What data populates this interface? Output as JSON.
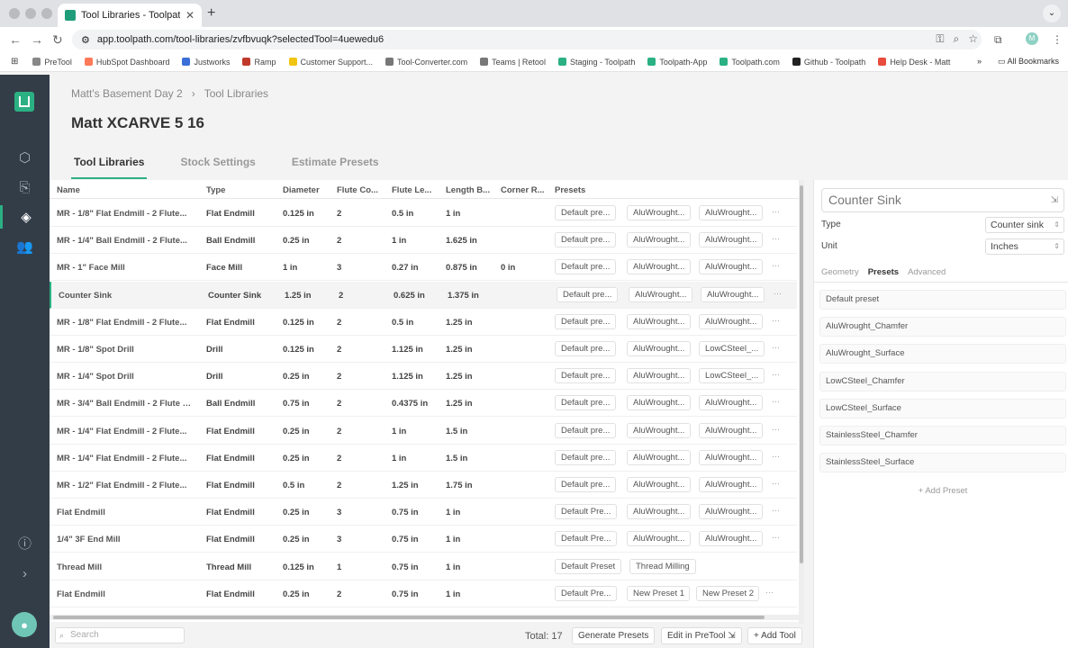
{
  "browser": {
    "tab_title": "Tool Libraries - Toolpath",
    "url": "app.toolpath.com/tool-libraries/zvfbvuqk?selectedTool=4uewedu6",
    "profile_initial": "M",
    "bookmarks": [
      {
        "label": "PreTool",
        "color": "#888888"
      },
      {
        "label": "HubSpot Dashboard",
        "color": "#ff7a59"
      },
      {
        "label": "Justworks",
        "color": "#3a6fd8"
      },
      {
        "label": "Ramp",
        "color": "#c0392b"
      },
      {
        "label": "Customer Support...",
        "color": "#f1c40f"
      },
      {
        "label": "Tool-Converter.com",
        "color": "#777777"
      },
      {
        "label": "Teams | Retool",
        "color": "#777777"
      },
      {
        "label": "Staging - Toolpath",
        "color": "#2bb083"
      },
      {
        "label": "Toolpath-App",
        "color": "#2bb083"
      },
      {
        "label": "Toolpath.com",
        "color": "#2bb083"
      },
      {
        "label": "Github - Toolpath",
        "color": "#222222"
      },
      {
        "label": "Help Desk - Matt",
        "color": "#e74c3c"
      }
    ],
    "more_bookmarks": "»",
    "all_bookmarks": "All Bookmarks"
  },
  "breadcrumb": {
    "parent": "Matt's Basement Day 2",
    "sep": "›",
    "current": "Tool Libraries"
  },
  "page_title": "Matt XCARVE 5 16",
  "tabs": [
    "Tool Libraries",
    "Stock Settings",
    "Estimate Presets"
  ],
  "columns": [
    "Name",
    "Type",
    "Diameter",
    "Flute Co...",
    "Flute Le...",
    "Length B...",
    "Corner R...",
    "Presets"
  ],
  "rows": [
    {
      "name": "MR - 1/8\" Flat Endmill - 2 Flute...",
      "type": "Flat Endmill",
      "diameter": "0.125 in",
      "flutes": "2",
      "flute_len": "0.5 in",
      "length": "1 in",
      "corner": "",
      "presets": [
        "Default pre...",
        "AluWrought...",
        "AluWrought..."
      ]
    },
    {
      "name": "MR - 1/4\" Ball Endmill - 2 Flute...",
      "type": "Ball Endmill",
      "diameter": "0.25 in",
      "flutes": "2",
      "flute_len": "1 in",
      "length": "1.625 in",
      "corner": "",
      "presets": [
        "Default pre...",
        "AluWrought...",
        "AluWrought..."
      ]
    },
    {
      "name": "MR - 1\" Face Mill",
      "type": "Face Mill",
      "diameter": "1 in",
      "flutes": "3",
      "flute_len": "0.27 in",
      "length": "0.875 in",
      "corner": "0 in",
      "presets": [
        "Default pre...",
        "AluWrought...",
        "AluWrought..."
      ]
    },
    {
      "name": "Counter Sink",
      "type": "Counter Sink",
      "diameter": "1.25 in",
      "flutes": "2",
      "flute_len": "0.625 in",
      "length": "1.375 in",
      "corner": "",
      "presets": [
        "Default pre...",
        "AluWrought...",
        "AluWrought..."
      ]
    },
    {
      "name": "MR - 1/8\" Flat Endmill - 2 Flute...",
      "type": "Flat Endmill",
      "diameter": "0.125 in",
      "flutes": "2",
      "flute_len": "0.5 in",
      "length": "1.25 in",
      "corner": "",
      "presets": [
        "Default pre...",
        "AluWrought...",
        "AluWrought..."
      ]
    },
    {
      "name": "MR - 1/8\" Spot Drill",
      "type": "Drill",
      "diameter": "0.125 in",
      "flutes": "2",
      "flute_len": "1.125 in",
      "length": "1.25 in",
      "corner": "",
      "presets": [
        "Default pre...",
        "AluWrought...",
        "LowCSteel_..."
      ]
    },
    {
      "name": "MR - 1/4\" Spot Drill",
      "type": "Drill",
      "diameter": "0.25 in",
      "flutes": "2",
      "flute_len": "1.125 in",
      "length": "1.25 in",
      "corner": "",
      "presets": [
        "Default pre...",
        "AluWrought...",
        "LowCSteel_..."
      ]
    },
    {
      "name": "MR - 3/4\" Ball Endmill - 2 Flute -...",
      "type": "Ball Endmill",
      "diameter": "0.75 in",
      "flutes": "2",
      "flute_len": "0.4375 in",
      "length": "1.25 in",
      "corner": "",
      "presets": [
        "Default pre...",
        "AluWrought...",
        "AluWrought..."
      ]
    },
    {
      "name": "MR - 1/4\" Flat Endmill - 2 Flute...",
      "type": "Flat Endmill",
      "diameter": "0.25 in",
      "flutes": "2",
      "flute_len": "1 in",
      "length": "1.5 in",
      "corner": "",
      "presets": [
        "Default pre...",
        "AluWrought...",
        "AluWrought..."
      ]
    },
    {
      "name": "MR - 1/4\" Flat Endmill - 2 Flute...",
      "type": "Flat Endmill",
      "diameter": "0.25 in",
      "flutes": "2",
      "flute_len": "1 in",
      "length": "1.5 in",
      "corner": "",
      "presets": [
        "Default pre...",
        "AluWrought...",
        "AluWrought..."
      ]
    },
    {
      "name": "MR - 1/2\" Flat Endmill - 2 Flute...",
      "type": "Flat Endmill",
      "diameter": "0.5 in",
      "flutes": "2",
      "flute_len": "1.25 in",
      "length": "1.75 in",
      "corner": "",
      "presets": [
        "Default pre...",
        "AluWrought...",
        "AluWrought..."
      ]
    },
    {
      "name": "Flat Endmill",
      "type": "Flat Endmill",
      "diameter": "0.25 in",
      "flutes": "3",
      "flute_len": "0.75 in",
      "length": "1 in",
      "corner": "",
      "presets": [
        "Default Pre...",
        "AluWrought...",
        "AluWrought..."
      ]
    },
    {
      "name": "1/4\" 3F End Mill",
      "type": "Flat Endmill",
      "diameter": "0.25 in",
      "flutes": "3",
      "flute_len": "0.75 in",
      "length": "1 in",
      "corner": "",
      "presets": [
        "Default Pre...",
        "AluWrought...",
        "AluWrought..."
      ]
    },
    {
      "name": "Thread Mill",
      "type": "Thread Mill",
      "diameter": "0.125 in",
      "flutes": "1",
      "flute_len": "0.75 in",
      "length": "1 in",
      "corner": "",
      "presets": [
        "Default Preset",
        "Thread Milling"
      ]
    },
    {
      "name": "Flat Endmill",
      "type": "Flat Endmill",
      "diameter": "0.25 in",
      "flutes": "2",
      "flute_len": "0.75 in",
      "length": "1 in",
      "corner": "",
      "presets": [
        "Default Pre...",
        "New Preset 1",
        "New Preset 2"
      ]
    }
  ],
  "selected_row": 3,
  "footer": {
    "search_placeholder": "Search",
    "total": "Total: 17",
    "generate_presets": "Generate Presets",
    "edit_in_pretool": "Edit in PreTool",
    "add_tool": "+ Add Tool"
  },
  "panel": {
    "tool_name": "Counter Sink",
    "type_label": "Type",
    "type_value": "Counter sink",
    "unit_label": "Unit",
    "unit_value": "Inches",
    "tabs": [
      "Geometry",
      "Presets",
      "Advanced"
    ],
    "active_tab": "Presets",
    "presets": [
      "Default preset",
      "AluWrought_Chamfer",
      "AluWrought_Surface",
      "LowCSteel_Chamfer",
      "LowCSteel_Surface",
      "StainlessSteel_Chamfer",
      "StainlessSteel_Surface"
    ],
    "add_preset": "+ Add Preset"
  },
  "colors": {
    "accent": "#2bb083",
    "nav_bg": "#333d48"
  }
}
